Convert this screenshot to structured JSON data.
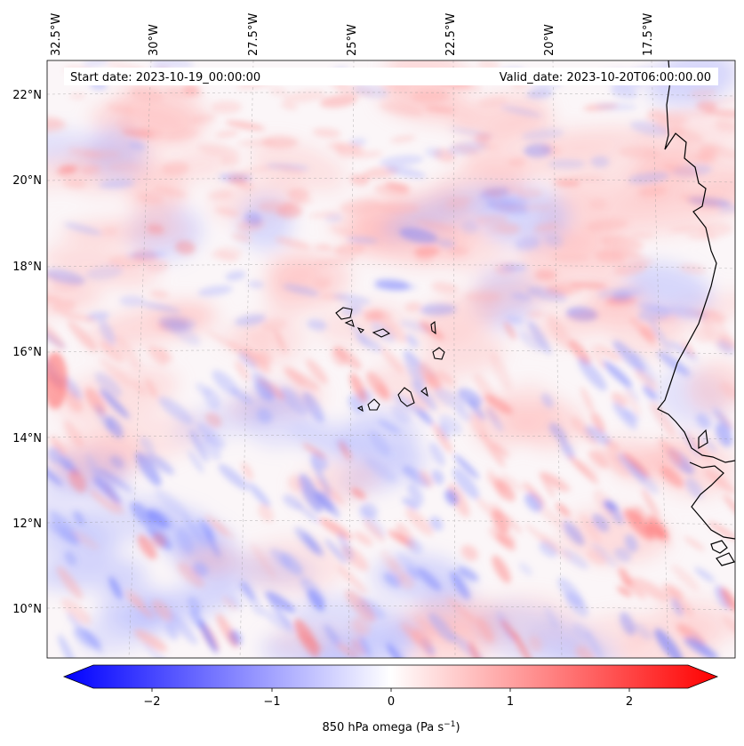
{
  "header": {
    "start_date": "Start date: 2023-10-19_00:00:00",
    "valid_date": "Valid_date: 2023-10-20T06:00:00.00"
  },
  "axes": {
    "lon_labels": [
      "32.5°W",
      "30°W",
      "27.5°W",
      "25°W",
      "22.5°W",
      "20°W",
      "17.5°W"
    ],
    "lat_labels": [
      "22°N",
      "20°N",
      "18°N",
      "16°N",
      "14°N",
      "12°N",
      "10°N"
    ]
  },
  "colorbar": {
    "label": "850 hPa omega (Pa s",
    "label_sup": "−1",
    "label_close": ")",
    "ticks": [
      "−2",
      "−1",
      "0",
      "1",
      "2"
    ],
    "tick_values": [
      -2,
      -1,
      0,
      1,
      2
    ],
    "range": [
      -2.7,
      2.7
    ],
    "colormap": "bwr",
    "colors": {
      "negative": "#0000ff",
      "zero": "#ffffff",
      "positive": "#ff0000"
    }
  },
  "chart_data": {
    "type": "heatmap",
    "field": "850 hPa omega",
    "units": "Pa s^-1",
    "lon_range_deg": [
      -33.0,
      -14.0
    ],
    "lat_range_deg": [
      8.9,
      22.8
    ],
    "value_range": [
      -2.7,
      2.7
    ]
  }
}
